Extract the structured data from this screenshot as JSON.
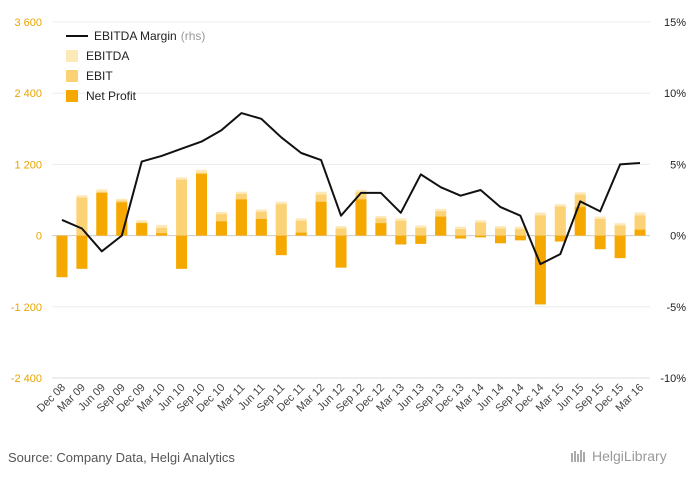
{
  "chart_data": {
    "type": "bar",
    "categories": [
      "Dec 08",
      "Mar 09",
      "Jun 09",
      "Sep 09",
      "Dec 09",
      "Mar 10",
      "Jun 10",
      "Sep 10",
      "Dec 10",
      "Mar 11",
      "Jun 11",
      "Sep 11",
      "Dec 11",
      "Mar 12",
      "Jun 12",
      "Sep 12",
      "Dec 12",
      "Mar 13",
      "Jun 13",
      "Sep 13",
      "Dec 13",
      "Mar 14",
      "Jun 14",
      "Sep 14",
      "Dec 14",
      "Mar 15",
      "Jun 15",
      "Sep 15",
      "Dec 15",
      "Mar 16"
    ],
    "series": [
      {
        "name": "EBITDA",
        "kind": "bar",
        "axis": "left",
        "color": "#fde9b8",
        "values": [
          -700,
          680,
          780,
          620,
          260,
          180,
          980,
          1110,
          400,
          740,
          440,
          570,
          290,
          740,
          160,
          770,
          330,
          290,
          170,
          450,
          150,
          260,
          160,
          150,
          390,
          530,
          730,
          320,
          210,
          390
        ]
      },
      {
        "name": "EBIT",
        "kind": "bar",
        "axis": "left",
        "color": "#fcd277",
        "values": [
          -700,
          640,
          740,
          590,
          220,
          130,
          940,
          1060,
          360,
          700,
          400,
          530,
          250,
          690,
          120,
          730,
          290,
          250,
          130,
          410,
          110,
          220,
          120,
          110,
          340,
          490,
          690,
          280,
          170,
          340
        ]
      },
      {
        "name": "Net Profit",
        "kind": "bar",
        "axis": "left",
        "color": "#f5a800",
        "values": [
          -700,
          -560,
          720,
          560,
          210,
          40,
          -560,
          1040,
          240,
          610,
          280,
          -330,
          50,
          570,
          -540,
          610,
          210,
          -150,
          -140,
          320,
          -50,
          -30,
          -130,
          -80,
          -1160,
          -100,
          480,
          -230,
          -380,
          100
        ]
      },
      {
        "name": "EBITDA Margin",
        "note": "(rhs)",
        "kind": "line",
        "axis": "right",
        "color": "#111111",
        "values": [
          1.1,
          0.5,
          -1.1,
          0.0,
          5.2,
          5.6,
          6.1,
          6.6,
          7.4,
          8.6,
          8.2,
          6.9,
          5.8,
          5.3,
          1.4,
          3.0,
          3.0,
          1.6,
          4.3,
          3.4,
          2.8,
          3.2,
          2.0,
          1.4,
          -2.0,
          -1.3,
          2.4,
          1.7,
          5.0,
          5.1
        ]
      }
    ],
    "y_left": {
      "min": -2400,
      "max": 3600,
      "ticks": [
        "-2 400",
        "-1 200",
        "0",
        "1 200",
        "2 400",
        "3 600"
      ],
      "tick_values": [
        -2400,
        -1200,
        0,
        1200,
        2400,
        3600
      ]
    },
    "y_right": {
      "min": -10,
      "max": 15,
      "ticks": [
        "-10%",
        "-5%",
        "0%",
        "5%",
        "10%",
        "15%"
      ],
      "tick_values": [
        -10,
        -5,
        0,
        5,
        10,
        15
      ]
    },
    "grid": true,
    "legend_position": "top-left"
  },
  "source_text": "Source: Company Data, Helgi Analytics",
  "logo_text": "HelgiLibrary"
}
